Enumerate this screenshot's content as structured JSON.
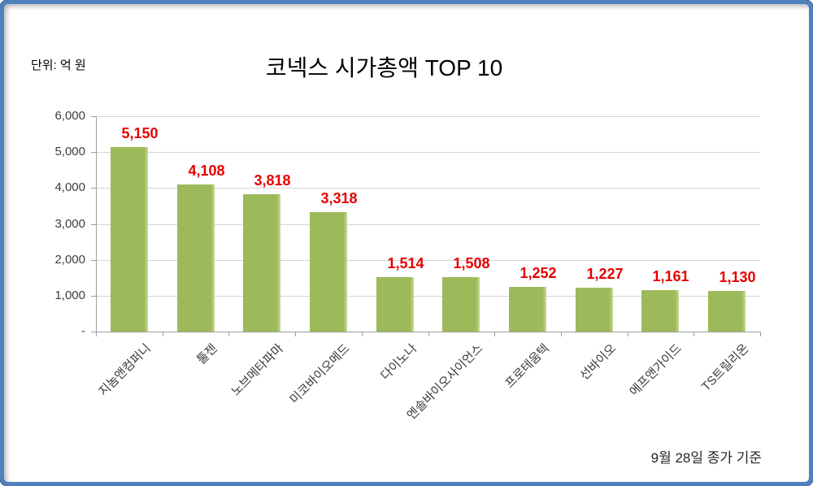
{
  "frame": {
    "border_color": "#4f81bd",
    "background": "#ffffff"
  },
  "header": {
    "unit_label": "단위: 억 원",
    "title": "코넥스 시가총액 TOP 10"
  },
  "footer": {
    "note": "9월 28일 종가 기준"
  },
  "chart_data": {
    "type": "bar",
    "title": "코넥스 시가총액 TOP 10",
    "unit": "억 원",
    "categories": [
      "지놈앤컴퍼니",
      "툴젠",
      "노브메타파마",
      "미코바이오메드",
      "다이노나",
      "엔솔바이오사이언스",
      "프로테움텍",
      "선바이오",
      "에프앤가이드",
      "TS트릴리온"
    ],
    "values": [
      5150,
      4108,
      3818,
      3318,
      1514,
      1508,
      1252,
      1227,
      1161,
      1130
    ],
    "value_labels": [
      "5,150",
      "4,108",
      "3,818",
      "3,318",
      "1,514",
      "1,508",
      "1,252",
      "1,227",
      "1,161",
      "1,130"
    ],
    "xlabel": "",
    "ylabel": "단위: 억 원",
    "ylim": [
      0,
      6000
    ],
    "ytick_interval": 1000,
    "ytick_labels": [
      "-",
      "1,000",
      "2,000",
      "3,000",
      "4,000",
      "5,000",
      "6,000"
    ],
    "grid": true,
    "legend": false,
    "annotation": "9월 28일 종가 기준",
    "bar_color": "#9cba5a",
    "bar_highlight_color": "#c8da96",
    "value_label_color": "#e60000",
    "gridline_color": "#d4d4d4",
    "axis_color": "#9f9f9f"
  }
}
